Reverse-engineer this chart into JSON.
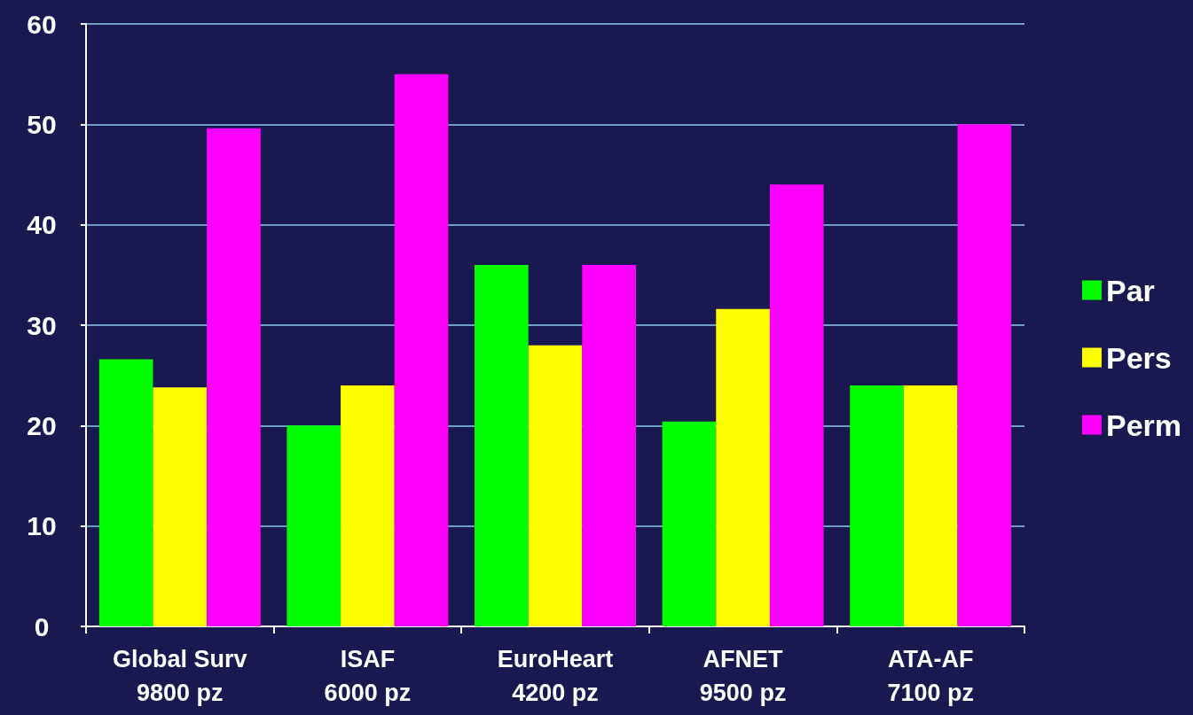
{
  "chart_data": {
    "type": "bar",
    "categories": [
      "Global Surv\n9800 pz",
      "ISAF\n6000 pz",
      "EuroHeart\n4200 pz",
      "AFNET\n9500 pz",
      "ATA-AF\n7100 pz"
    ],
    "series": [
      {
        "name": "Par",
        "color": "#00ff00",
        "values": [
          26.6,
          20.0,
          36.0,
          20.4,
          24.0
        ]
      },
      {
        "name": "Pers",
        "color": "#ffff00",
        "values": [
          23.8,
          24.0,
          28.0,
          31.6,
          24.0
        ]
      },
      {
        "name": "Perm",
        "color": "#ff00ff",
        "values": [
          49.6,
          55.0,
          36.0,
          44.0,
          50.0
        ]
      }
    ],
    "ylim": [
      0,
      60
    ],
    "yticks": [
      0,
      10,
      20,
      30,
      40,
      50,
      60
    ],
    "grid": "y",
    "legend": "right"
  }
}
